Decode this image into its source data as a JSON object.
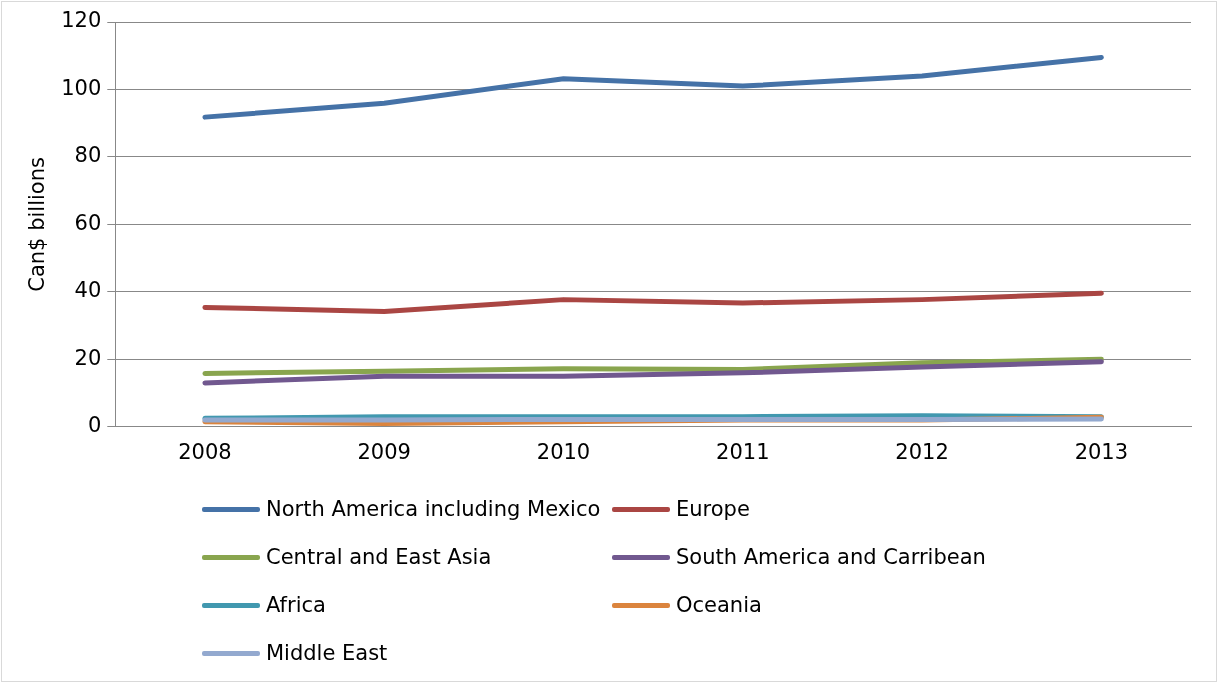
{
  "chart_data": {
    "type": "line",
    "ylabel": "Can$ billions",
    "categories": [
      "2008",
      "2009",
      "2010",
      "2011",
      "2012",
      "2013"
    ],
    "ylim": [
      0,
      120
    ],
    "yticks": [
      0,
      20,
      40,
      60,
      80,
      100,
      120
    ],
    "grid": "y",
    "legend": "bottom",
    "marker": "none",
    "line_style": "solid",
    "series": [
      {
        "name": "North America including Mexico",
        "color": "#4572a7",
        "values": [
          91.8,
          95.9,
          103.2,
          101,
          104,
          109.5
        ]
      },
      {
        "name": "Europe",
        "color": "#aa4643",
        "values": [
          35.4,
          34.2,
          37.7,
          36.7,
          37.7,
          39.6
        ]
      },
      {
        "name": "Central and East Asia",
        "color": "#89a54e",
        "values": [
          15.8,
          16.5,
          17.2,
          17,
          19,
          20
        ]
      },
      {
        "name": "South America and Carribean",
        "color": "#71588f",
        "values": [
          13,
          15,
          15,
          16,
          17.7,
          19.3
        ]
      },
      {
        "name": "Africa",
        "color": "#4198af",
        "values": [
          2.5,
          3,
          3,
          3,
          3.3,
          3
        ]
      },
      {
        "name": "Oceania",
        "color": "#db843d",
        "values": [
          1.5,
          1,
          1.5,
          2,
          2,
          2.8
        ]
      },
      {
        "name": "Middle East",
        "color": "#93a9cf",
        "values": [
          2,
          2,
          2.2,
          2.2,
          2.2,
          2.3
        ]
      }
    ]
  }
}
